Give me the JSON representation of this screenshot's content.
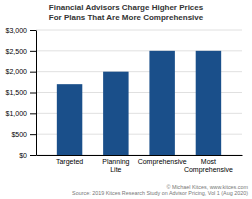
{
  "chart_data": {
    "type": "bar",
    "title": "Financial Advisors Charge Higher Prices\nFor Plans That Are More Comprehensive",
    "categories": [
      "Targeted",
      "Planning Lite",
      "Comprehensive",
      "Most Comprehensive"
    ],
    "values": [
      1700,
      2000,
      2500,
      2500
    ],
    "color": "#1a4f8a",
    "ylim": [
      0,
      3000
    ],
    "yticks": [
      {
        "value": 0,
        "label": "$0"
      },
      {
        "value": 500,
        "label": "$500"
      },
      {
        "value": 1000,
        "label": "$1,000"
      },
      {
        "value": 1500,
        "label": "$1,500"
      },
      {
        "value": 2000,
        "label": "$2,000"
      },
      {
        "value": 2500,
        "label": "$2,500"
      },
      {
        "value": 3000,
        "label": "$3,000"
      }
    ],
    "grid": true,
    "annotations": [
      "© Michael Kitces, www.kitces.com\nSource: 2019 Kitces Research Study on Advisor Pricing, Vol 1 (Aug 2020)"
    ]
  }
}
